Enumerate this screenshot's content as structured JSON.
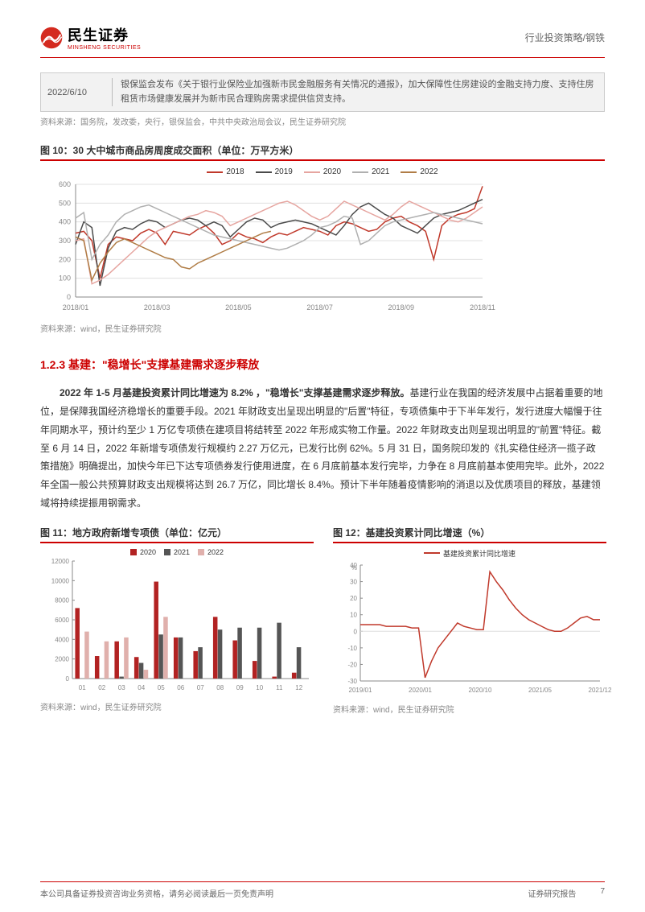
{
  "header": {
    "logo_cn": "民生证券",
    "logo_en": "MINSHENG SECURITIES",
    "category": "行业投资策略/钢铁"
  },
  "logo_colors": {
    "red": "#d42a1f",
    "streak": "#ffffff"
  },
  "notice": {
    "date": "2022/6/10",
    "text": "银保监会发布《关于银行业保险业加强新市民金融服务有关情况的通报》，加大保障性住房建设的金融支持力度、支持住房租赁市场健康发展并为新市民合理购房需求提供信贷支持。",
    "source": "资料来源：国务院，发改委，央行，银保监会，中共中央政治局会议，民生证券研究院"
  },
  "chart10": {
    "title": "图 10：30 大中城市商品房周度成交面积（单位：万平方米）",
    "type": "line",
    "legend": [
      {
        "label": "2018",
        "color": "#c0392b"
      },
      {
        "label": "2019",
        "color": "#4a4a4a"
      },
      {
        "label": "2020",
        "color": "#e6a5a0"
      },
      {
        "label": "2021",
        "color": "#b0b0b0"
      },
      {
        "label": "2022",
        "color": "#b07d46"
      }
    ],
    "ylim": [
      0,
      600
    ],
    "ytick_step": 100,
    "xticks": [
      "2018/01",
      "2018/03",
      "2018/05",
      "2018/07",
      "2018/09",
      "2018/11"
    ],
    "series": {
      "s2018": [
        340,
        350,
        300,
        100,
        280,
        320,
        310,
        300,
        340,
        360,
        340,
        280,
        350,
        340,
        330,
        360,
        380,
        340,
        280,
        300,
        340,
        320,
        310,
        290,
        320,
        340,
        330,
        350,
        370,
        360,
        350,
        330,
        380,
        400,
        390,
        370,
        350,
        360,
        400,
        420,
        430,
        400,
        380,
        350,
        200,
        380,
        420,
        440,
        450,
        470,
        590
      ],
      "s2019": [
        280,
        400,
        370,
        60,
        260,
        350,
        370,
        360,
        390,
        410,
        400,
        370,
        390,
        410,
        420,
        410,
        380,
        400,
        380,
        320,
        360,
        400,
        420,
        410,
        370,
        390,
        400,
        410,
        400,
        390,
        370,
        350,
        330,
        380,
        440,
        480,
        500,
        470,
        440,
        420,
        380,
        360,
        340,
        380,
        420,
        440,
        450,
        460,
        480,
        500,
        520
      ],
      "s2020": [
        300,
        310,
        70,
        90,
        120,
        160,
        200,
        240,
        280,
        320,
        350,
        370,
        390,
        410,
        430,
        440,
        460,
        450,
        430,
        380,
        400,
        420,
        440,
        460,
        480,
        500,
        510,
        490,
        460,
        430,
        410,
        430,
        470,
        510,
        490,
        470,
        450,
        430,
        410,
        440,
        480,
        510,
        490,
        470,
        450,
        430,
        410,
        400,
        420,
        450,
        480
      ],
      "s2021": [
        420,
        450,
        200,
        280,
        330,
        400,
        440,
        460,
        480,
        490,
        470,
        450,
        430,
        410,
        390,
        370,
        350,
        330,
        320,
        310,
        300,
        290,
        280,
        270,
        260,
        250,
        260,
        280,
        300,
        330,
        370,
        380,
        400,
        430,
        420,
        280,
        300,
        340,
        380,
        400,
        410,
        420,
        430,
        440,
        450,
        440,
        430,
        420,
        410,
        400,
        390
      ],
      "s2022": [
        320,
        300,
        90,
        180,
        240,
        290,
        310,
        290,
        270,
        250,
        230,
        210,
        200,
        160,
        150,
        180,
        200,
        220,
        240,
        260,
        280,
        300,
        320,
        340,
        350
      ]
    },
    "background_color": "#ffffff",
    "grid_color": "#e0e0e0",
    "axis_color": "#888888",
    "axis_fontsize": 9,
    "line_width": 1.5,
    "source": "资料来源：wind，民生证券研究院"
  },
  "section": {
    "heading": "1.2.3 基建：\"稳增长\"支撑基建需求逐步释放",
    "paragraph_bold": "2022 年 1-5 月基建投资累计同比增速为 8.2% ，\"稳增长\"支撑基建需求逐步释放。",
    "paragraph_rest": "基建行业在我国的经济发展中占据着重要的地位，是保障我国经济稳增长的重要手段。2021 年财政支出呈现出明显的\"后置\"特征，专项债集中于下半年发行，发行进度大幅慢于往年同期水平，预计约至少 1 万亿专项债在建项目将结转至 2022 年形成实物工作量。2022 年财政支出则呈现出明显的\"前置\"特征。截至 6 月 14 日，2022 年新增专项债发行规模约 2.27 万亿元，已发行比例 62%。5 月 31 日，国务院印发的《扎实稳住经济一揽子政策措施》明确提出，加快今年已下达专项债券发行使用进度，在 6 月底前基本发行完毕，力争在 8 月底前基本使用完毕。此外，2022 年全国一般公共预算财政支出规模将达到 26.7 万亿，同比增长 8.4%。预计下半年随着疫情影响的消退以及优质项目的释放，基建领域将持续提振用钢需求。"
  },
  "chart11": {
    "title": "图 11：地方政府新增专项债（单位：亿元）",
    "type": "bar",
    "legend": [
      {
        "label": "2020",
        "color": "#b22222"
      },
      {
        "label": "2021",
        "color": "#555555"
      },
      {
        "label": "2022",
        "color": "#e0b0ac"
      }
    ],
    "categories": [
      "01",
      "02",
      "03",
      "04",
      "05",
      "06",
      "07",
      "08",
      "09",
      "10",
      "11",
      "12"
    ],
    "values": {
      "v2020": [
        7200,
        2300,
        3800,
        2200,
        9900,
        4200,
        2800,
        6300,
        3900,
        1800,
        200,
        600
      ],
      "v2021": [
        0,
        0,
        200,
        1600,
        4500,
        4200,
        3200,
        5000,
        5200,
        5200,
        5700,
        3200
      ],
      "v2022": [
        4800,
        3800,
        4200,
        900,
        6300,
        0,
        0,
        0,
        0,
        0,
        0,
        0
      ]
    },
    "ytick_step": 2000,
    "ylim": [
      0,
      12000
    ],
    "axis_color": "#888888",
    "axis_fontsize": 8,
    "bar_width": 0.24,
    "source": "资料来源：wind，民生证券研究院"
  },
  "chart12": {
    "title": "图 12：基建投资累计同比增速（%）",
    "type": "line",
    "legend_label": "基建投资累计同比增速",
    "color": "#c0392b",
    "xticks": [
      "2019/01",
      "2020/01",
      "2020/10",
      "2021/05",
      "2021/12"
    ],
    "ylim": [
      -30,
      40
    ],
    "ytick_step": 10,
    "ylabel": "%",
    "values": [
      4,
      4,
      4,
      4,
      3,
      3,
      3,
      3,
      2,
      2,
      -28,
      -18,
      -10,
      -5,
      0,
      5,
      3,
      2,
      1,
      1,
      36,
      30,
      25,
      19,
      14,
      10,
      7,
      5,
      3,
      1,
      0,
      0,
      2,
      5,
      8,
      9,
      7,
      7
    ],
    "axis_color": "#888888",
    "axis_fontsize": 8,
    "line_width": 1.5,
    "source": "资料来源：wind，民生证券研究院"
  },
  "footer": {
    "left": "本公司具备证券投资咨询业务资格，请务必阅读最后一页免责声明",
    "mid": "证券研究报告",
    "page": "7"
  }
}
